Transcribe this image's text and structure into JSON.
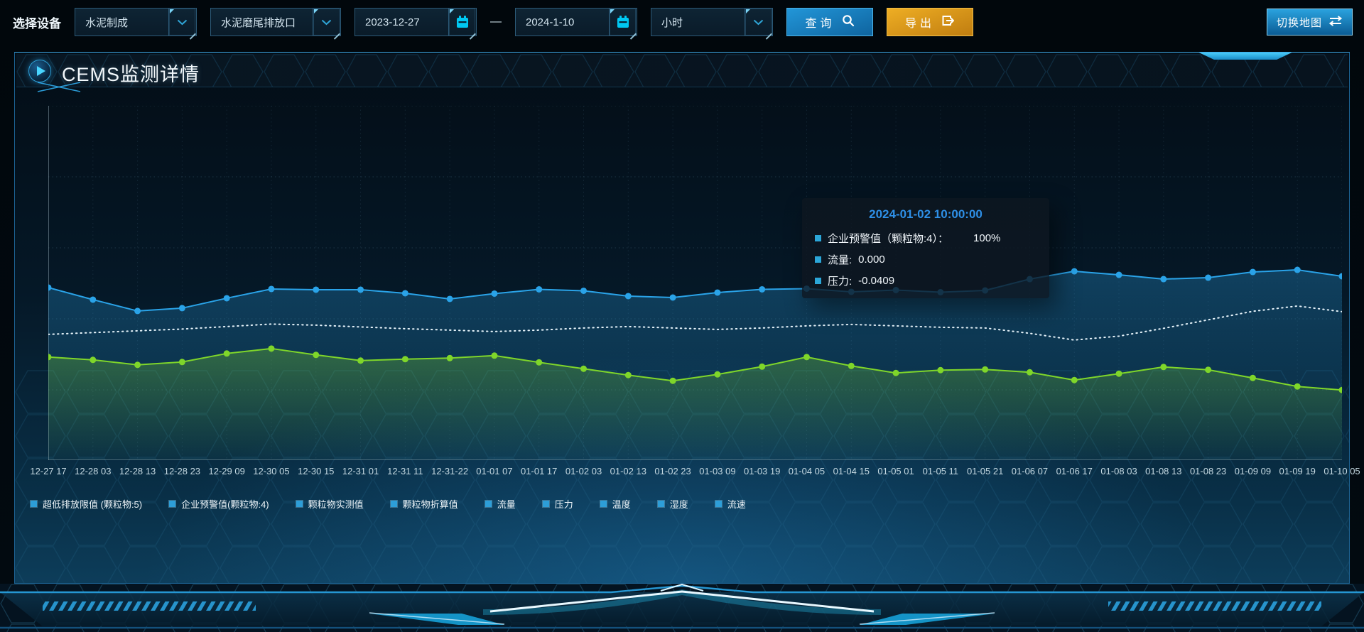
{
  "toolbar": {
    "device_label": "选择设备",
    "device_select": "水泥制成",
    "outlet_select": "水泥磨尾排放口",
    "date_start": "2023-12-27",
    "date_separator": "—",
    "date_end": "2024-1-10",
    "interval_select": "小时",
    "query_label": "查询",
    "export_label": "导出",
    "switch_map_label": "切换地图"
  },
  "panel": {
    "title": "CEMS监测详情"
  },
  "tooltip": {
    "title": "2024-01-02 10:00:00",
    "rows": [
      {
        "label": "企业预警值（颗粒物:4）：",
        "value": "100%"
      },
      {
        "label": "流量:",
        "value": "0.000"
      },
      {
        "label": "压力:",
        "value": "-0.0409"
      }
    ]
  },
  "legend": [
    "超低排放限值 (颗粒物:5)",
    "企业预警值(颗粒物:4)",
    "颗粒物实测值",
    "颗粒物折算值",
    "流量",
    "压力",
    "温度",
    "湿度",
    "流速"
  ],
  "chart_data": {
    "type": "line",
    "categories": [
      "12-27 17",
      "12-28 03",
      "12-28 13",
      "12-28 23",
      "12-29 09",
      "12-30 05",
      "12-30 15",
      "12-31 01",
      "12-31 11",
      "12-31-22",
      "01-01 07",
      "01-01 17",
      "01-02 03",
      "01-02 13",
      "01-02 23",
      "01-03 09",
      "01-03 19",
      "01-04 05",
      "01-04 15",
      "01-05 01",
      "01-05 11",
      "01-05 21",
      "01-06 07",
      "01-06 17",
      "01-08 03",
      "01-08 13",
      "01-08 23",
      "01-09 09",
      "01-09 19",
      "01-10 05"
    ],
    "series": [
      {
        "name": "企业预警值(颗粒物:4)",
        "color": "#2aa3e8",
        "line": "solid",
        "points": true,
        "area": true,
        "values": [
          48.7,
          45.3,
          42.1,
          42.9,
          45.7,
          48.3,
          48.1,
          48.1,
          47.1,
          45.5,
          47.0,
          48.2,
          47.8,
          46.3,
          45.9,
          47.3,
          48.2,
          48.4,
          47.5,
          48.0,
          47.4,
          47.9,
          51.1,
          53.3,
          52.3,
          51.1,
          51.5,
          53.1,
          53.7,
          51.9
        ]
      },
      {
        "name": "流量",
        "color": "#e6f3fa",
        "line": "dotted",
        "points": false,
        "area": false,
        "values": [
          35.5,
          36.0,
          36.5,
          37.0,
          37.7,
          38.4,
          38.1,
          37.6,
          37.1,
          36.7,
          36.3,
          36.7,
          37.3,
          37.7,
          37.3,
          36.9,
          37.3,
          37.9,
          38.3,
          37.9,
          37.5,
          37.3,
          35.8,
          33.9,
          35.0,
          37.2,
          39.6,
          42.0,
          43.5,
          41.9
        ]
      },
      {
        "name": "压力",
        "color": "#7fd62a",
        "line": "solid",
        "points": true,
        "area": true,
        "values": [
          29.1,
          28.3,
          26.9,
          27.7,
          30.1,
          31.5,
          29.7,
          28.1,
          28.5,
          28.8,
          29.5,
          27.6,
          25.8,
          24.0,
          22.4,
          24.2,
          26.4,
          29.1,
          26.6,
          24.6,
          25.4,
          25.6,
          24.8,
          22.6,
          24.4,
          26.3,
          25.5,
          23.2,
          20.8,
          19.8
        ]
      }
    ],
    "title": "",
    "xlabel": "",
    "ylabel": "",
    "ylim": [
      0,
      100
    ],
    "grid": "dashed",
    "legend_position": "bottom",
    "y_axis_labels_visible": false
  },
  "colors": {
    "accent_blue": "#2aa3e8",
    "accent_green": "#7fd62a",
    "accent_cyan": "#00c8f2",
    "export_orange": "#d9961d",
    "tooltip_title_blue": "#2e8fe6",
    "panel_border": "#2b84c2"
  }
}
